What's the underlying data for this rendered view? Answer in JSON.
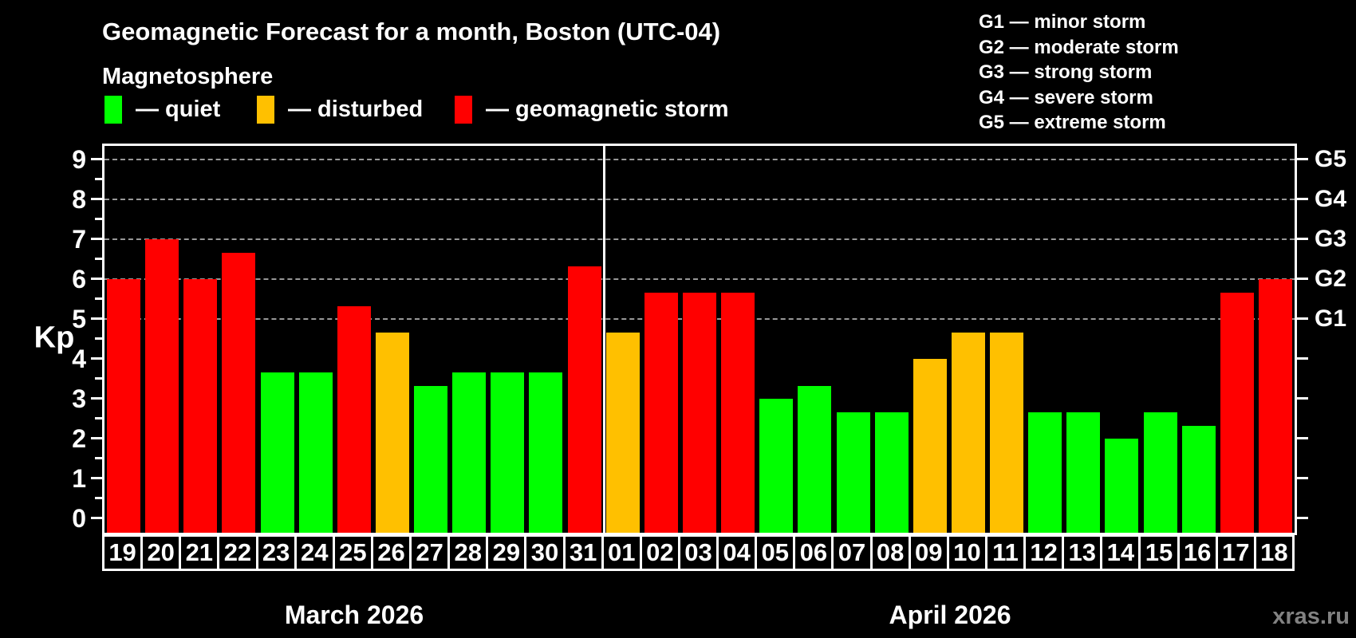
{
  "title": "Geomagnetic Forecast for a month, Boston (UTC-04)",
  "legend": {
    "title": "Magnetosphere",
    "items": [
      {
        "name": "quiet",
        "label": "— quiet",
        "color": "#00ff00"
      },
      {
        "name": "disturbed",
        "label": "— disturbed",
        "color": "#ffc000"
      },
      {
        "name": "storm",
        "label": "— geomagnetic storm",
        "color": "#ff0000"
      }
    ]
  },
  "storm_scale_legend": [
    "G1 — minor storm",
    "G2 — moderate storm",
    "G3 — strong storm",
    "G4 — severe storm",
    "G5 — extreme storm"
  ],
  "watermark": "xras.ru",
  "chart_data": {
    "type": "bar",
    "title": "Geomagnetic Forecast for a month, Boston (UTC-04)",
    "ylabel": "Kp",
    "ylim": [
      0,
      9
    ],
    "yticks": [
      "0",
      "1",
      "2",
      "3",
      "4",
      "5",
      "6",
      "7",
      "8",
      "9"
    ],
    "gridlines_at": [
      5,
      6,
      7,
      8,
      9
    ],
    "right_axis": [
      {
        "label": "G1",
        "kp": 5
      },
      {
        "label": "G2",
        "kp": 6
      },
      {
        "label": "G3",
        "kp": 7
      },
      {
        "label": "G4",
        "kp": 8
      },
      {
        "label": "G5",
        "kp": 9
      }
    ],
    "colors": {
      "quiet": "#00ff00",
      "disturbed": "#ffc000",
      "storm": "#ff0000"
    },
    "months": [
      {
        "label": "March 2026",
        "bars": [
          {
            "day": "19",
            "kp": 6,
            "level": "storm"
          },
          {
            "day": "20",
            "kp": 7,
            "level": "storm"
          },
          {
            "day": "21",
            "kp": 6,
            "level": "storm"
          },
          {
            "day": "22",
            "kp": 6.67,
            "level": "storm"
          },
          {
            "day": "23",
            "kp": 3.67,
            "level": "quiet"
          },
          {
            "day": "24",
            "kp": 3.67,
            "level": "quiet"
          },
          {
            "day": "25",
            "kp": 5.33,
            "level": "storm"
          },
          {
            "day": "26",
            "kp": 4.67,
            "level": "disturbed"
          },
          {
            "day": "27",
            "kp": 3.33,
            "level": "quiet"
          },
          {
            "day": "28",
            "kp": 3.67,
            "level": "quiet"
          },
          {
            "day": "29",
            "kp": 3.67,
            "level": "quiet"
          },
          {
            "day": "30",
            "kp": 3.67,
            "level": "quiet"
          },
          {
            "day": "31",
            "kp": 6.33,
            "level": "storm"
          }
        ]
      },
      {
        "label": "April 2026",
        "bars": [
          {
            "day": "01",
            "kp": 4.67,
            "level": "disturbed"
          },
          {
            "day": "02",
            "kp": 5.67,
            "level": "storm"
          },
          {
            "day": "03",
            "kp": 5.67,
            "level": "storm"
          },
          {
            "day": "04",
            "kp": 5.67,
            "level": "storm"
          },
          {
            "day": "05",
            "kp": 3,
            "level": "quiet"
          },
          {
            "day": "06",
            "kp": 3.33,
            "level": "quiet"
          },
          {
            "day": "07",
            "kp": 2.67,
            "level": "quiet"
          },
          {
            "day": "08",
            "kp": 2.67,
            "level": "quiet"
          },
          {
            "day": "09",
            "kp": 4,
            "level": "disturbed"
          },
          {
            "day": "10",
            "kp": 4.67,
            "level": "disturbed"
          },
          {
            "day": "11",
            "kp": 4.67,
            "level": "disturbed"
          },
          {
            "day": "12",
            "kp": 2.67,
            "level": "quiet"
          },
          {
            "day": "13",
            "kp": 2.67,
            "level": "quiet"
          },
          {
            "day": "14",
            "kp": 2,
            "level": "quiet"
          },
          {
            "day": "15",
            "kp": 2.67,
            "level": "quiet"
          },
          {
            "day": "16",
            "kp": 2.33,
            "level": "quiet"
          },
          {
            "day": "17",
            "kp": 5.67,
            "level": "storm"
          },
          {
            "day": "18",
            "kp": 6,
            "level": "storm"
          }
        ]
      }
    ]
  }
}
